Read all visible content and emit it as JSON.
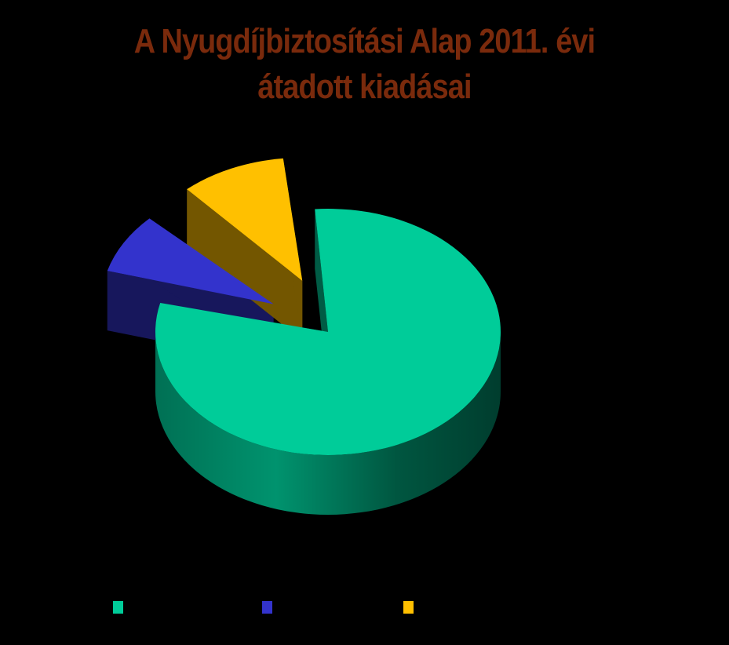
{
  "title_lines": [
    "A Nyugdíjbiztosítási Alap 2011. évi",
    "átadott kiadásai"
  ],
  "colors": {
    "background": "#000000",
    "title": "#7a2a0c"
  },
  "chart_data": {
    "type": "pie",
    "three_d": true,
    "title": "A Nyugdíjbiztosítási Alap 2011. évi átadott kiadásai",
    "legend_position": "bottom",
    "series": [
      {
        "name": "",
        "value": 80,
        "color": "#00cc99",
        "exploded": false
      },
      {
        "name": "",
        "value": 9,
        "color": "#3333cc",
        "exploded": true
      },
      {
        "name": "",
        "value": 11,
        "color": "#ffc000",
        "exploded": true
      }
    ]
  }
}
